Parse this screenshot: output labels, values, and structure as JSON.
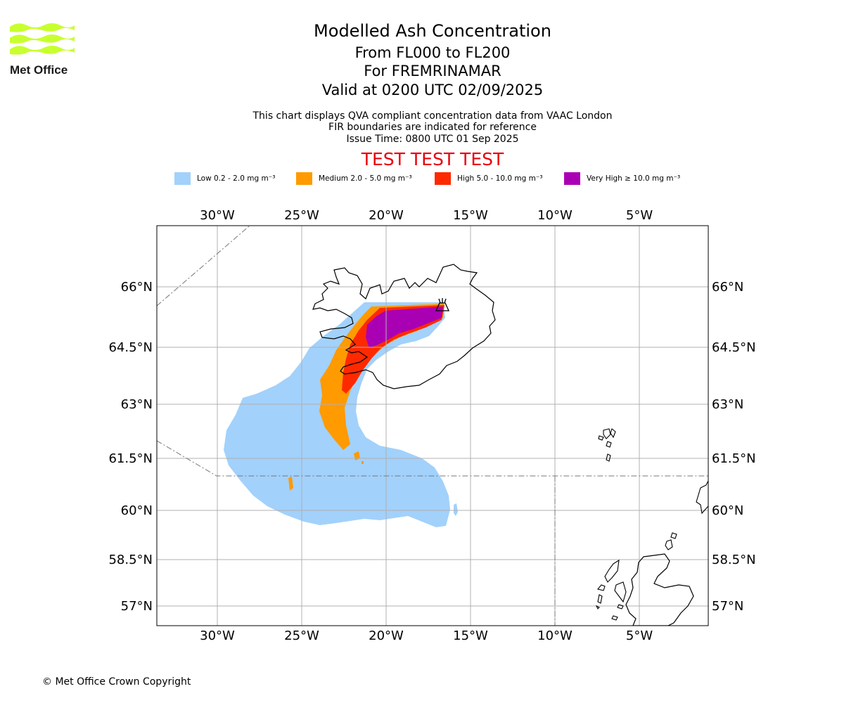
{
  "header": {
    "title": "Modelled Ash Concentration",
    "levels": "From FL000 to FL200",
    "volcano": "For FREMRINAMAR",
    "valid": "Valid at 0200 UTC 02/09/2025",
    "note1": "This chart displays QVA compliant concentration data from VAAC London",
    "note2": "FIR boundaries are indicated for reference",
    "issue": "Issue Time: 0800 UTC 01 Sep 2025",
    "test": "TEST TEST TEST"
  },
  "logo": {
    "text": "Met Office",
    "color": "#c8ff2e"
  },
  "legend": [
    {
      "label": "Low 0.2 - 2.0 mg m⁻³",
      "color": "#a2d1fb"
    },
    {
      "label": "Medium 2.0 - 5.0 mg m⁻³",
      "color": "#ff9a00"
    },
    {
      "label": "High 5.0 - 10.0 mg m⁻³",
      "color": "#ff2900"
    },
    {
      "label": "Very High ≥ 10.0 mg m⁻³",
      "color": "#aa00b4"
    }
  ],
  "map": {
    "lon_ticks": [
      "30°W",
      "25°W",
      "20°W",
      "15°W",
      "10°W",
      "5°W"
    ],
    "lat_ticks": [
      "66°N",
      "64.5°N",
      "63°N",
      "61.5°N",
      "60°N",
      "58.5°N",
      "57°N"
    ],
    "volcano_icon": "volcano-icon"
  },
  "copyright": "© Met Office Crown Copyright"
}
